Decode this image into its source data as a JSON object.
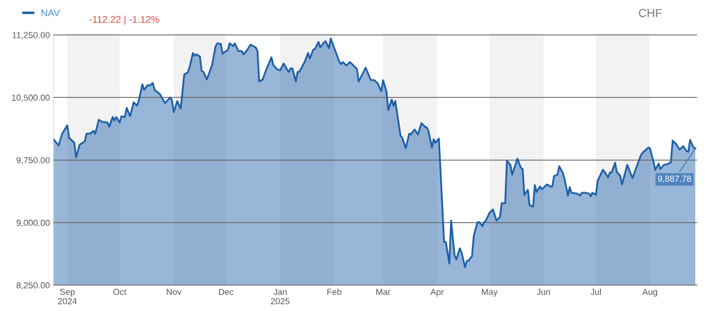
{
  "chart_data": {
    "type": "area",
    "annotations": [
      "-112.22 | -1.12%",
      "CHF",
      {
        "text": "9,887.78",
        "x": "2025-08-27",
        "y": 9887.78
      }
    ],
    "x": [
      "2024-08-24",
      "2024-08-27",
      "2024-08-29",
      "2024-09-01",
      "2024-09-02",
      "2024-09-05",
      "2024-09-06",
      "2024-09-08",
      "2024-09-11",
      "2024-09-12",
      "2024-09-14",
      "2024-09-16",
      "2024-09-17",
      "2024-09-19",
      "2024-09-21",
      "2024-09-24",
      "2024-09-25",
      "2024-09-27",
      "2024-09-28",
      "2024-09-29",
      "2024-10-01",
      "2024-10-02",
      "2024-10-04",
      "2024-10-05",
      "2024-10-07",
      "2024-10-09",
      "2024-10-11",
      "2024-10-12",
      "2024-10-14",
      "2024-10-15",
      "2024-10-17",
      "2024-10-18",
      "2024-10-20",
      "2024-10-21",
      "2024-10-24",
      "2024-10-27",
      "2024-10-30",
      "2024-10-31",
      "2024-11-01",
      "2024-11-03",
      "2024-11-05",
      "2024-11-07",
      "2024-11-09",
      "2024-11-10",
      "2024-11-12",
      "2024-11-13",
      "2024-11-14",
      "2024-11-16",
      "2024-11-17",
      "2024-11-18",
      "2024-11-20",
      "2024-11-23",
      "2024-11-25",
      "2024-11-26",
      "2024-11-28",
      "2024-11-29",
      "2024-12-01",
      "2024-12-02",
      "2024-12-03",
      "2024-12-05",
      "2024-12-06",
      "2024-12-08",
      "2024-12-10",
      "2024-12-11",
      "2024-12-13",
      "2024-12-15",
      "2024-12-18",
      "2024-12-19",
      "2024-12-20",
      "2024-12-22",
      "2024-12-24",
      "2024-12-27",
      "2024-12-28",
      "2024-12-30",
      "2025-01-01",
      "2025-01-03",
      "2025-01-05",
      "2025-01-06",
      "2025-01-07",
      "2025-01-08",
      "2025-01-10",
      "2025-01-11",
      "2025-01-12",
      "2025-01-15",
      "2025-01-17",
      "2025-01-18",
      "2025-01-20",
      "2025-01-21",
      "2025-01-23",
      "2025-01-24",
      "2025-01-26",
      "2025-01-27",
      "2025-01-29",
      "2025-01-30",
      "2025-01-31",
      "2025-02-04",
      "2025-02-05",
      "2025-02-06",
      "2025-02-08",
      "2025-02-10",
      "2025-02-14",
      "2025-02-15",
      "2025-02-16",
      "2025-02-19",
      "2025-02-22",
      "2025-02-24",
      "2025-02-26",
      "2025-02-28",
      "2025-03-01",
      "2025-03-03",
      "2025-03-04",
      "2025-03-06",
      "2025-03-07",
      "2025-03-08",
      "2025-03-11",
      "2025-03-12",
      "2025-03-14",
      "2025-03-16",
      "2025-03-17",
      "2025-03-19",
      "2025-03-21",
      "2025-03-23",
      "2025-03-25",
      "2025-03-26",
      "2025-03-27",
      "2025-03-29",
      "2025-03-30",
      "2025-03-31",
      "2025-04-02",
      "2025-04-04",
      "2025-04-05",
      "2025-04-06",
      "2025-04-08",
      "2025-04-09",
      "2025-04-11",
      "2025-04-12",
      "2025-04-14",
      "2025-04-15",
      "2025-04-17",
      "2025-04-18",
      "2025-04-19",
      "2025-04-21",
      "2025-04-22",
      "2025-04-24",
      "2025-04-25",
      "2025-04-27",
      "2025-04-28",
      "2025-04-29",
      "2025-05-01",
      "2025-05-03",
      "2025-05-05",
      "2025-05-07",
      "2025-05-08",
      "2025-05-10",
      "2025-05-11",
      "2025-05-13",
      "2025-05-14",
      "2025-05-17",
      "2025-05-19",
      "2025-05-20",
      "2025-05-21",
      "2025-05-23",
      "2025-05-24",
      "2025-05-26",
      "2025-05-27",
      "2025-05-28",
      "2025-05-30",
      "2025-05-31",
      "2025-06-03",
      "2025-06-05",
      "2025-06-06",
      "2025-06-07",
      "2025-06-09",
      "2025-06-10",
      "2025-06-12",
      "2025-06-13",
      "2025-06-15",
      "2025-06-16",
      "2025-06-17",
      "2025-06-20",
      "2025-06-22",
      "2025-06-23",
      "2025-06-25",
      "2025-06-27",
      "2025-06-28",
      "2025-06-29",
      "2025-07-01",
      "2025-07-02",
      "2025-07-05",
      "2025-07-06",
      "2025-07-08",
      "2025-07-09",
      "2025-07-10",
      "2025-07-12",
      "2025-07-13",
      "2025-07-15",
      "2025-07-16",
      "2025-07-19",
      "2025-07-22",
      "2025-07-24",
      "2025-07-27",
      "2025-07-28",
      "2025-07-31",
      "2025-08-01",
      "2025-08-03",
      "2025-08-04",
      "2025-08-06",
      "2025-08-07",
      "2025-08-09",
      "2025-08-11",
      "2025-08-13",
      "2025-08-14",
      "2025-08-16",
      "2025-08-18",
      "2025-08-20",
      "2025-08-22",
      "2025-08-23",
      "2025-08-24",
      "2025-08-26",
      "2025-08-27"
    ],
    "series": [
      {
        "name": "NAV",
        "color": "#1b5ea8",
        "values": [
          10000,
          9925,
          10067,
          10167,
          10017,
          9958,
          9783,
          9933,
          9975,
          10067,
          10067,
          10100,
          10067,
          10233,
          10208,
          10200,
          10150,
          10267,
          10225,
          10267,
          10200,
          10275,
          10267,
          10375,
          10275,
          10442,
          10400,
          10467,
          10658,
          10592,
          10650,
          10642,
          10675,
          10592,
          10542,
          10433,
          10500,
          10467,
          10325,
          10458,
          10367,
          10775,
          10800,
          10858,
          11033,
          11000,
          11017,
          10992,
          10817,
          10808,
          10717,
          10892,
          11117,
          11150,
          11142,
          11025,
          11058,
          11067,
          11150,
          11117,
          11150,
          11058,
          11058,
          11017,
          11067,
          11133,
          11100,
          11058,
          10692,
          10717,
          10833,
          10983,
          10892,
          10842,
          10825,
          10908,
          10833,
          10808,
          10850,
          10850,
          10692,
          10808,
          10808,
          10925,
          11033,
          10967,
          11075,
          11083,
          11167,
          11100,
          11158,
          11175,
          11092,
          11208,
          11150,
          10925,
          10900,
          10925,
          10883,
          10925,
          10842,
          10692,
          10733,
          10858,
          10708,
          10708,
          10667,
          10575,
          10708,
          10567,
          10350,
          10475,
          10400,
          10458,
          10042,
          10017,
          9892,
          10067,
          10058,
          10117,
          10058,
          10192,
          10150,
          10142,
          10100,
          9900,
          10000,
          9958,
          10008,
          9175,
          8767,
          8767,
          8508,
          9025,
          8608,
          8558,
          8692,
          8642,
          8467,
          8542,
          8542,
          8600,
          8842,
          9000,
          9008,
          8958,
          9008,
          9025,
          9117,
          9158,
          9025,
          9067,
          9233,
          9233,
          9742,
          9692,
          9575,
          9767,
          9658,
          9642,
          9333,
          9392,
          9208,
          9192,
          9450,
          9367,
          9433,
          9400,
          9458,
          9433,
          9433,
          9558,
          9575,
          9675,
          9600,
          9525,
          9325,
          9425,
          9358,
          9350,
          9325,
          9358,
          9358,
          9350,
          9317,
          9358,
          9333,
          9500,
          9633,
          9608,
          9542,
          9600,
          9600,
          9717,
          9608,
          9558,
          9458,
          9692,
          9533,
          9650,
          9817,
          9842,
          9900,
          9892,
          9733,
          9633,
          9708,
          9642,
          9692,
          9700,
          9725,
          9983,
          9942,
          9875,
          9917,
          9858,
          9850,
          9992,
          9900,
          9887.78
        ]
      }
    ],
    "xlim": [
      "2024-08-24",
      "2025-08-28"
    ],
    "xticks": [
      {
        "value": "2024-09-01",
        "label": "Sep\n2024"
      },
      {
        "value": "2024-10-01",
        "label": "Oct"
      },
      {
        "value": "2024-11-01",
        "label": "Nov"
      },
      {
        "value": "2024-12-01",
        "label": "Dec"
      },
      {
        "value": "2025-01-01",
        "label": "Jan\n2025"
      },
      {
        "value": "2025-02-01",
        "label": "Feb"
      },
      {
        "value": "2025-03-01",
        "label": "Mar"
      },
      {
        "value": "2025-04-01",
        "label": "Apr"
      },
      {
        "value": "2025-05-01",
        "label": "May"
      },
      {
        "value": "2025-06-01",
        "label": "Jun"
      },
      {
        "value": "2025-07-01",
        "label": "Jul"
      },
      {
        "value": "2025-08-01",
        "label": "Aug"
      }
    ],
    "ylim": [
      8250,
      11270
    ],
    "yticks": [
      {
        "value": 8250,
        "label": "8,250.00"
      },
      {
        "value": 9000,
        "label": "9,000.00"
      },
      {
        "value": 9750,
        "label": "9,750.00"
      },
      {
        "value": 10500,
        "label": "10,500.00"
      },
      {
        "value": 11250,
        "label": "11,250.00"
      }
    ],
    "bands": [
      {
        "axis": "x",
        "from": "2024-09-01",
        "to": "2024-10-01",
        "color": "#f2f2f2"
      },
      {
        "axis": "x",
        "from": "2024-11-01",
        "to": "2024-12-01",
        "color": "#f2f2f2"
      },
      {
        "axis": "x",
        "from": "2025-01-01",
        "to": "2025-02-01",
        "color": "#f2f2f2"
      },
      {
        "axis": "x",
        "from": "2025-03-01",
        "to": "2025-04-01",
        "color": "#f2f2f2"
      },
      {
        "axis": "x",
        "from": "2025-05-01",
        "to": "2025-06-01",
        "color": "#f2f2f2"
      },
      {
        "axis": "x",
        "from": "2025-07-01",
        "to": "2025-08-01",
        "color": "#f2f2f2"
      }
    ],
    "grid": "y",
    "legend": "top left"
  }
}
